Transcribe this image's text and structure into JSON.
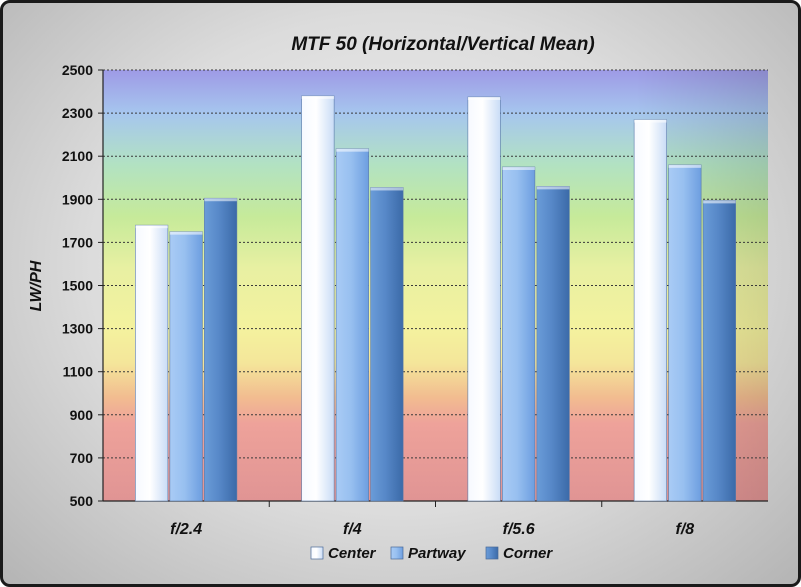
{
  "chart_data": {
    "type": "bar",
    "title": "MTF 50 (Horizontal/Vertical Mean)",
    "xlabel": "",
    "ylabel": "LW/PH",
    "categories": [
      "f/2.4",
      "f/4",
      "f/5.6",
      "f/8"
    ],
    "series": [
      {
        "name": "Center",
        "values": [
          1780,
          2380,
          2375,
          2270
        ],
        "color": "#e8f0fc"
      },
      {
        "name": "Partway",
        "values": [
          1750,
          2135,
          2050,
          2060
        ],
        "color": "#8fb8ec"
      },
      {
        "name": "Corner",
        "values": [
          1905,
          1955,
          1960,
          1895
        ],
        "color": "#4f86c8"
      }
    ],
    "ylim": [
      500,
      2500
    ],
    "yticks": [
      500,
      700,
      900,
      1100,
      1300,
      1500,
      1700,
      1900,
      2100,
      2300,
      2500
    ],
    "grid": true,
    "legend_position": "bottom"
  }
}
